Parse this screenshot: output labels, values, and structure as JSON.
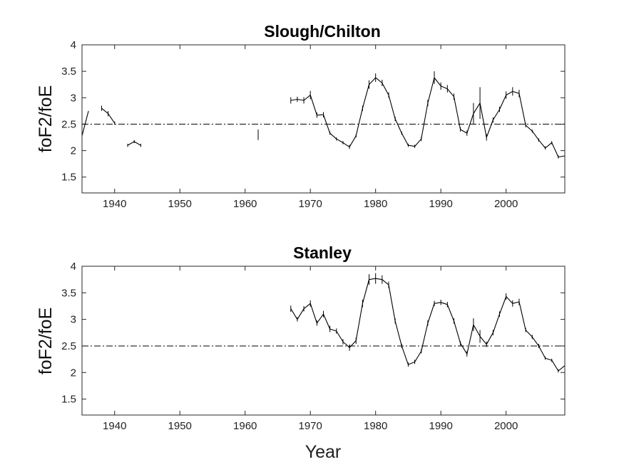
{
  "chart_data": [
    {
      "type": "line",
      "title": "Slough/Chilton",
      "ylabel": "foF2/foE",
      "xlabel": "",
      "xlim": [
        1935,
        2009
      ],
      "ylim": [
        1.2,
        4
      ],
      "xticks": [
        1940,
        1950,
        1960,
        1970,
        1980,
        1990,
        2000
      ],
      "yticks": [
        1.5,
        2,
        2.5,
        3,
        3.5,
        4
      ],
      "reference_line": 2.5,
      "grid": false,
      "segments": [
        {
          "x": [
            1935,
            1936
          ],
          "y": [
            2.28,
            2.75
          ],
          "err": [
            0,
            0
          ]
        },
        {
          "x": [
            1938,
            1939,
            1940
          ],
          "y": [
            2.8,
            2.7,
            2.52
          ],
          "err": [
            0.05,
            0.05,
            0.03
          ]
        },
        {
          "x": [
            1942,
            1943,
            1944
          ],
          "y": [
            2.1,
            2.17,
            2.1
          ],
          "err": [
            0.03,
            0.03,
            0.03
          ]
        },
        {
          "x": [
            1962
          ],
          "y": [
            2.3
          ],
          "err": [
            0.1
          ]
        },
        {
          "x": [
            1967,
            1968,
            1969,
            1970,
            1971,
            1972,
            1973,
            1974,
            1975,
            1976,
            1977,
            1978,
            1979,
            1980,
            1981,
            1982,
            1983,
            1984,
            1985,
            1986,
            1987,
            1988,
            1989,
            1990,
            1991,
            1992,
            1993,
            1994,
            1995,
            1996,
            1997,
            1998,
            1999,
            2000,
            2001,
            2002,
            2003,
            2004,
            2005,
            2006,
            2007,
            2008,
            2009
          ],
          "y": [
            2.95,
            2.97,
            2.95,
            3.05,
            2.67,
            2.68,
            2.33,
            2.22,
            2.15,
            2.07,
            2.28,
            2.8,
            3.25,
            3.38,
            3.28,
            3.05,
            2.6,
            2.33,
            2.1,
            2.08,
            2.22,
            2.9,
            3.38,
            3.22,
            3.17,
            3.02,
            2.4,
            2.33,
            2.7,
            2.9,
            2.25,
            2.58,
            2.78,
            3.05,
            3.12,
            3.08,
            2.48,
            2.37,
            2.2,
            2.05,
            2.15,
            1.88,
            1.9
          ],
          "err": [
            0.06,
            0.05,
            0.06,
            0.08,
            0.05,
            0.05,
            0.03,
            0.03,
            0.03,
            0.04,
            0.03,
            0.05,
            0.08,
            0.08,
            0.06,
            0.05,
            0.04,
            0.03,
            0.03,
            0.03,
            0.04,
            0.06,
            0.12,
            0.07,
            0.07,
            0.06,
            0.04,
            0.05,
            0.2,
            0.3,
            0.06,
            0.05,
            0.05,
            0.07,
            0.08,
            0.07,
            0.04,
            0.03,
            0.03,
            0.03,
            0.03,
            0.03,
            0.03
          ]
        }
      ]
    },
    {
      "type": "line",
      "title": "Stanley",
      "ylabel": "foF2/foE",
      "xlabel": "Year",
      "xlim": [
        1935,
        2009
      ],
      "ylim": [
        1.2,
        4
      ],
      "xticks": [
        1940,
        1950,
        1960,
        1970,
        1980,
        1990,
        2000
      ],
      "yticks": [
        1.5,
        2,
        2.5,
        3,
        3.5,
        4
      ],
      "reference_line": 2.5,
      "grid": false,
      "segments": [
        {
          "x": [
            1967,
            1968,
            1969,
            1970,
            1971,
            1972,
            1973,
            1974,
            1975,
            1976,
            1977,
            1978,
            1979,
            1980,
            1981,
            1982,
            1983,
            1984,
            1985,
            1986,
            1987,
            1988,
            1989,
            1990,
            1991,
            1992,
            1993,
            1994,
            1995,
            1996,
            1997,
            1998,
            1999,
            2000,
            2001,
            2002,
            2003,
            2004,
            2005,
            2006,
            2007,
            2008,
            2009
          ],
          "y": [
            3.2,
            3.0,
            3.2,
            3.3,
            2.93,
            3.1,
            2.82,
            2.78,
            2.58,
            2.47,
            2.6,
            3.3,
            3.75,
            3.77,
            3.75,
            3.65,
            2.97,
            2.5,
            2.15,
            2.2,
            2.4,
            2.93,
            3.3,
            3.32,
            3.28,
            2.97,
            2.55,
            2.35,
            2.9,
            2.68,
            2.53,
            2.75,
            3.1,
            3.43,
            3.3,
            3.33,
            2.8,
            2.67,
            2.5,
            2.27,
            2.23,
            2.03,
            2.13
          ],
          "err": [
            0.06,
            0.04,
            0.05,
            0.06,
            0.05,
            0.06,
            0.06,
            0.05,
            0.05,
            0.06,
            0.06,
            0.07,
            0.1,
            0.1,
            0.08,
            0.06,
            0.05,
            0.04,
            0.04,
            0.04,
            0.04,
            0.05,
            0.05,
            0.05,
            0.05,
            0.05,
            0.04,
            0.05,
            0.12,
            0.12,
            0.05,
            0.05,
            0.05,
            0.06,
            0.06,
            0.06,
            0.04,
            0.04,
            0.04,
            0.03,
            0.03,
            0.03,
            0.03
          ]
        }
      ]
    }
  ]
}
